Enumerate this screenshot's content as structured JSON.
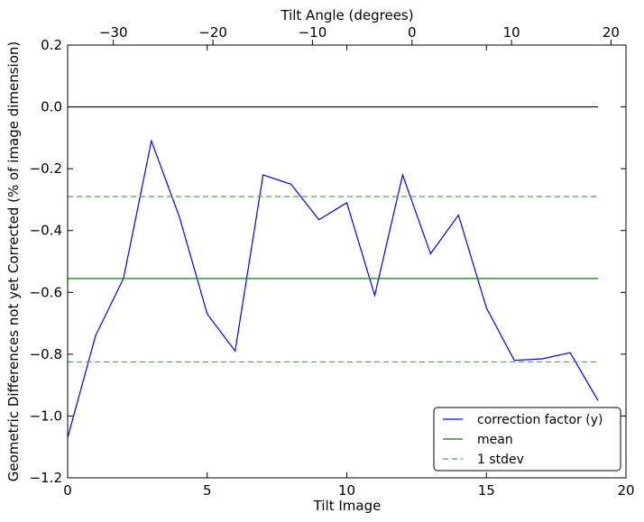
{
  "chart_data": {
    "type": "line",
    "xlabel": "Tilt Image",
    "x2label": "Tilt Angle (degrees)",
    "ylabel": "Geometric Differences not yet Corrected (% of image dimension)",
    "xlim": [
      0,
      20
    ],
    "ylim": [
      -1.2,
      0.2
    ],
    "x2lim": [
      -34.6,
      21.5
    ],
    "xticks": [
      0,
      5,
      10,
      15,
      20
    ],
    "xtick_labels": [
      "0",
      "5",
      "10",
      "15",
      "20"
    ],
    "yticks": [
      0.2,
      0.0,
      -0.2,
      -0.4,
      -0.6,
      -0.8,
      -1.0,
      -1.2
    ],
    "ytick_labels": [
      "0.2",
      "0.0",
      "−0.2",
      "−0.4",
      "−0.6",
      "−0.8",
      "−1.0",
      "−1.2"
    ],
    "x2ticks": [
      -30,
      -20,
      -10,
      0,
      10,
      20
    ],
    "x2tick_labels": [
      "−30",
      "−20",
      "−10",
      "0",
      "10",
      "20"
    ],
    "grid": false,
    "legend_placement": "lower-right",
    "series": [
      {
        "name": "correction factor (y)",
        "color": "#0000ff",
        "style": "solid",
        "x": [
          0,
          1,
          2,
          3,
          4,
          5,
          6,
          7,
          8,
          9,
          10,
          11,
          12,
          13,
          14,
          15,
          16,
          17,
          18,
          19
        ],
        "values": [
          -1.07,
          -0.74,
          -0.555,
          -0.11,
          -0.355,
          -0.67,
          -0.79,
          -0.22,
          -0.25,
          -0.365,
          -0.31,
          -0.61,
          -0.22,
          -0.475,
          -0.35,
          -0.65,
          -0.82,
          -0.815,
          -0.795,
          -0.95
        ]
      },
      {
        "name": "mean",
        "color": "#008000",
        "style": "solid",
        "x": [
          0,
          19
        ],
        "values": [
          -0.555,
          -0.555
        ]
      },
      {
        "name": "1 stdev",
        "color": "#4aa84a",
        "style": "dashed",
        "x": [
          0,
          19
        ],
        "values": [
          -0.29,
          -0.29
        ]
      },
      {
        "name": "",
        "color": "#4aa84a",
        "style": "dashed",
        "x": [
          0,
          19
        ],
        "values": [
          -0.825,
          -0.825
        ]
      },
      {
        "name": "",
        "color": "#000000",
        "style": "solid",
        "x": [
          0,
          19
        ],
        "values": [
          0.0,
          0.0
        ]
      }
    ]
  }
}
